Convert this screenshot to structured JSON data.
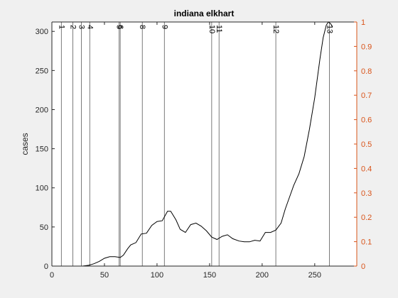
{
  "chart_data": {
    "type": "line",
    "title": "indiana elkhart",
    "ylabel": "cases",
    "xlim": [
      0,
      290
    ],
    "ylim": [
      0,
      312
    ],
    "y2lim": [
      0,
      1
    ],
    "x_ticks": [
      0,
      50,
      100,
      150,
      200,
      250
    ],
    "y_ticks": [
      0,
      50,
      100,
      150,
      200,
      250,
      300
    ],
    "y2_ticks": [
      0,
      0.1,
      0.2,
      0.3,
      0.4,
      0.5,
      0.6,
      0.7,
      0.8,
      0.9,
      1
    ],
    "grid": false,
    "legend": "none",
    "series": [
      {
        "x": [
          29,
          35,
          40,
          45,
          50,
          55,
          60,
          65,
          68,
          72,
          75,
          80,
          85,
          90,
          95,
          100,
          105,
          110,
          113,
          118,
          122,
          127,
          132,
          137,
          142,
          147,
          152,
          157,
          162,
          167,
          172,
          178,
          183,
          188,
          193,
          198,
          203,
          208,
          213,
          218,
          222,
          226,
          230,
          235,
          240,
          245,
          250,
          255,
          258,
          261,
          263,
          265,
          267
        ],
        "values": [
          0,
          1,
          3,
          6,
          10,
          12,
          12,
          11,
          14,
          22,
          27,
          30,
          41,
          42,
          52,
          57,
          58,
          70,
          70,
          59,
          47,
          43,
          53,
          55,
          51,
          45,
          37,
          34,
          38,
          40,
          35,
          32,
          31,
          31,
          33,
          32,
          43,
          43,
          46,
          55,
          73,
          88,
          103,
          118,
          140,
          175,
          215,
          265,
          292,
          308,
          312,
          310,
          306
        ]
      }
    ],
    "events": [
      {
        "label": "1",
        "x": 9
      },
      {
        "label": "2",
        "x": 20
      },
      {
        "label": "3",
        "x": 28
      },
      {
        "label": "4",
        "x": 36
      },
      {
        "label": "5",
        "x": 64
      },
      {
        "label": "6",
        "x": 65
      },
      {
        "label": "8",
        "x": 86
      },
      {
        "label": "9",
        "x": 107
      },
      {
        "label": "10",
        "x": 152
      },
      {
        "label": "11",
        "x": 159
      },
      {
        "label": "12",
        "x": 213
      },
      {
        "label": "13",
        "x": 264
      }
    ],
    "colors": {
      "background": "#f0f0f0",
      "plot_area": "#ffffff",
      "line": "#000000",
      "axis": "#262626",
      "right_axis": "#d95319",
      "event_line": "#5a5a5a"
    }
  }
}
